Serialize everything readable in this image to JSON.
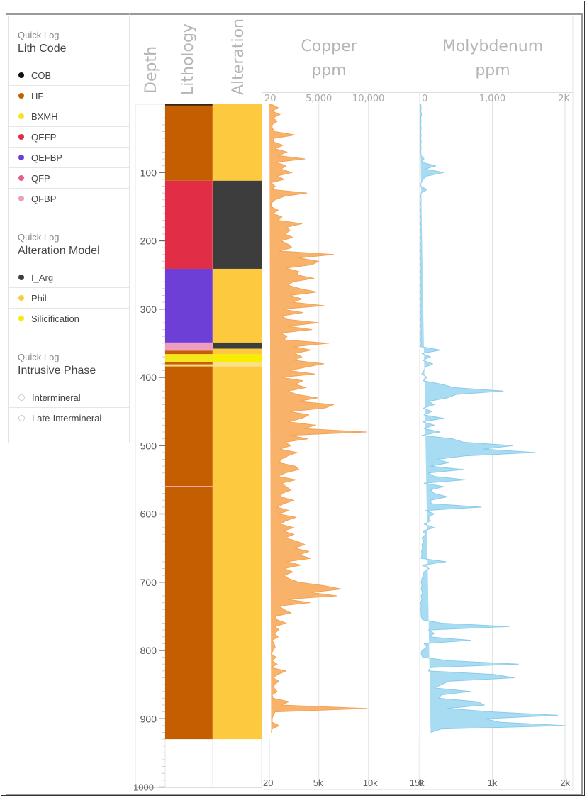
{
  "sidebar": {
    "sections": [
      {
        "kicker": "Quick Log",
        "title": "Lith Code",
        "items": [
          {
            "label": "COB",
            "color": "#111111"
          },
          {
            "label": "HF",
            "color": "#c45e00"
          },
          {
            "label": "BXMH",
            "color": "#f5e61c"
          },
          {
            "label": "QEFP",
            "color": "#e12d46"
          },
          {
            "label": "QEFBP",
            "color": "#6e3fd6"
          },
          {
            "label": "QFP",
            "color": "#e0608c"
          },
          {
            "label": "QFBP",
            "color": "#ee9cc0"
          }
        ]
      },
      {
        "kicker": "Quick Log",
        "title": "Alteration Model",
        "items": [
          {
            "label": "I_Arg",
            "color": "#3d3d3d"
          },
          {
            "label": "Phil",
            "color": "#fdc93e"
          },
          {
            "label": "Silicification",
            "color": "#f8ec00"
          }
        ]
      },
      {
        "kicker": "Quick Log",
        "title": "Intrusive Phase",
        "items": [
          {
            "label": "Intermineral",
            "color": "hollow"
          },
          {
            "label": "Late-Intermineral",
            "color": "hollow"
          }
        ]
      }
    ]
  },
  "headers": {
    "depth": "Depth",
    "lithology": "Lithology",
    "alteration": "Alteration",
    "copper_line1": "Copper",
    "copper_line2": "ppm",
    "moly_line1": "Molybdenum",
    "moly_line2": "ppm"
  },
  "chart_data": [
    {
      "type": "table",
      "title": "Lithology",
      "ylabel": "Depth",
      "ylim": [
        0,
        1000
      ],
      "intervals": [
        {
          "from": 0,
          "to": 2,
          "code": "COB",
          "color": "#3b2410"
        },
        {
          "from": 2,
          "to": 112,
          "code": "HF",
          "color": "#c45e00"
        },
        {
          "from": 112,
          "to": 241,
          "code": "QEFP",
          "color": "#e12d46"
        },
        {
          "from": 241,
          "to": 349,
          "code": "QEFBP",
          "color": "#6e3fd6"
        },
        {
          "from": 349,
          "to": 361,
          "code": "QFBP",
          "color": "#ee9cc0"
        },
        {
          "from": 361,
          "to": 366,
          "code": "HF",
          "color": "#c45e00"
        },
        {
          "from": 366,
          "to": 378,
          "code": "BXMH",
          "color": "#f5e61c"
        },
        {
          "from": 378,
          "to": 381,
          "code": "HF",
          "color": "#c45e00"
        },
        {
          "from": 381,
          "to": 384,
          "code": "BXMH",
          "color": "#f7d97a"
        },
        {
          "from": 384,
          "to": 559,
          "code": "HF",
          "color": "#c45e00"
        },
        {
          "from": 559,
          "to": 560,
          "code": "QFBP",
          "color": "#f2a6a0"
        },
        {
          "from": 560,
          "to": 930,
          "code": "HF",
          "color": "#c45e00"
        }
      ]
    },
    {
      "type": "table",
      "title": "Alteration",
      "ylabel": "Depth",
      "ylim": [
        0,
        1000
      ],
      "intervals": [
        {
          "from": 0,
          "to": 112,
          "code": "Phil",
          "color": "#fdc93e"
        },
        {
          "from": 112,
          "to": 241,
          "code": "I_Arg",
          "color": "#3d3d3d"
        },
        {
          "from": 241,
          "to": 349,
          "code": "Phil",
          "color": "#fdc93e"
        },
        {
          "from": 349,
          "to": 358,
          "code": "I_Arg",
          "color": "#3d3d3d"
        },
        {
          "from": 358,
          "to": 366,
          "code": "Phil",
          "color": "#fdc93e"
        },
        {
          "from": 366,
          "to": 378,
          "code": "Silicification",
          "color": "#f8ec00"
        },
        {
          "from": 378,
          "to": 384,
          "code": "Phil",
          "color": "#fde08a"
        },
        {
          "from": 384,
          "to": 930,
          "code": "Phil",
          "color": "#fdc93e"
        }
      ]
    },
    {
      "type": "area",
      "title": "Copper ppm",
      "ylabel": "Depth",
      "ylim": [
        0,
        1000
      ],
      "xlim": [
        20,
        15000
      ],
      "top_ticks": [
        "20",
        "5,000",
        "10,000"
      ],
      "top_tick_values": [
        20,
        5000,
        10000
      ],
      "bottom_ticks": [
        "20",
        "5k",
        "10k",
        "15k"
      ],
      "bottom_tick_values": [
        20,
        5000,
        10000,
        15000
      ],
      "color": "#f8b26a",
      "depth": [
        0,
        5,
        10,
        15,
        20,
        25,
        30,
        35,
        40,
        45,
        50,
        55,
        60,
        65,
        70,
        75,
        80,
        85,
        90,
        95,
        100,
        105,
        110,
        115,
        120,
        125,
        130,
        135,
        140,
        145,
        150,
        155,
        160,
        165,
        170,
        175,
        180,
        185,
        190,
        195,
        200,
        205,
        210,
        215,
        220,
        225,
        230,
        235,
        240,
        245,
        250,
        255,
        260,
        265,
        270,
        275,
        280,
        285,
        290,
        295,
        300,
        305,
        310,
        315,
        320,
        325,
        330,
        335,
        340,
        345,
        350,
        355,
        360,
        365,
        370,
        375,
        380,
        385,
        390,
        395,
        400,
        405,
        410,
        415,
        420,
        425,
        430,
        435,
        440,
        445,
        450,
        455,
        460,
        465,
        470,
        475,
        480,
        485,
        490,
        495,
        500,
        505,
        510,
        515,
        520,
        525,
        530,
        535,
        540,
        545,
        550,
        555,
        560,
        565,
        570,
        575,
        580,
        585,
        590,
        595,
        600,
        605,
        610,
        615,
        620,
        625,
        630,
        635,
        640,
        645,
        650,
        655,
        660,
        665,
        670,
        675,
        680,
        685,
        690,
        695,
        700,
        705,
        710,
        715,
        720,
        725,
        730,
        735,
        740,
        745,
        750,
        755,
        760,
        765,
        770,
        775,
        780,
        785,
        790,
        795,
        800,
        805,
        810,
        815,
        820,
        825,
        830,
        835,
        840,
        845,
        850,
        855,
        860,
        865,
        870,
        875,
        880,
        885,
        890,
        895,
        900,
        905,
        910,
        915,
        920,
        925,
        930
      ],
      "values": [
        200,
        900,
        300,
        1100,
        400,
        800,
        300,
        300,
        600,
        2600,
        500,
        400,
        1400,
        600,
        1800,
        900,
        3600,
        700,
        1700,
        1200,
        2300,
        800,
        1500,
        200,
        600,
        300,
        3800,
        1500,
        600,
        200,
        200,
        900,
        400,
        1300,
        900,
        3300,
        1800,
        2100,
        1600,
        2400,
        1200,
        1900,
        2300,
        1000,
        6500,
        3000,
        5000,
        4300,
        1700,
        3000,
        2800,
        4500,
        2400,
        1900,
        3100,
        4800,
        2100,
        3300,
        2400,
        5500,
        1300,
        3400,
        1300,
        1800,
        5000,
        1800,
        4300,
        1200,
        1800,
        1500,
        6000,
        2500,
        4200,
        2600,
        3300,
        2500,
        5500,
        3700,
        2000,
        4600,
        1200,
        3400,
        2600,
        3700,
        1900,
        2800,
        4900,
        2900,
        6500,
        5600,
        2100,
        4000,
        3300,
        1900,
        4700,
        3500,
        9800,
        2000,
        3900,
        1600,
        2200,
        1100,
        2800,
        1900,
        1200,
        1000,
        2600,
        3000,
        1600,
        900,
        2700,
        1300,
        1700,
        2200,
        1300,
        1100,
        2500,
        1500,
        800,
        2000,
        900,
        2700,
        1700,
        1100,
        2500,
        1400,
        2500,
        1600,
        2800,
        3600,
        2500,
        4000,
        3000,
        4200,
        1800,
        3200,
        1500,
        2400,
        1500,
        2000,
        3000,
        5500,
        7300,
        4200,
        6800,
        1800,
        4100,
        1000,
        1500,
        2200,
        600,
        800,
        1700,
        600,
        1000,
        500,
        900,
        300,
        500,
        600,
        400,
        200,
        700,
        300,
        800,
        200,
        1700,
        900,
        400,
        1000,
        500,
        500,
        800,
        300,
        400,
        2000,
        1200,
        9800,
        600,
        400,
        300,
        300,
        1000,
        300,
        200
      ]
    },
    {
      "type": "area",
      "title": "Molybdenum ppm",
      "ylabel": "Depth",
      "ylim": [
        0,
        1000
      ],
      "xlim": [
        0,
        2000
      ],
      "top_ticks": [
        "0",
        "1,000",
        "2K"
      ],
      "top_tick_values": [
        0,
        1000,
        2000
      ],
      "bottom_ticks": [
        "0",
        "1k",
        "2k"
      ],
      "bottom_tick_values": [
        0,
        1000,
        2000
      ],
      "color": "#a8dcf3",
      "depth": [
        0,
        5,
        10,
        15,
        20,
        25,
        30,
        35,
        40,
        45,
        50,
        55,
        60,
        65,
        70,
        75,
        80,
        85,
        90,
        95,
        100,
        105,
        110,
        115,
        120,
        125,
        130,
        135,
        140,
        145,
        150,
        155,
        160,
        165,
        170,
        175,
        180,
        185,
        190,
        195,
        200,
        205,
        210,
        215,
        220,
        225,
        230,
        235,
        240,
        245,
        250,
        255,
        260,
        265,
        270,
        275,
        280,
        285,
        290,
        295,
        300,
        305,
        310,
        315,
        320,
        325,
        330,
        335,
        340,
        345,
        350,
        355,
        360,
        365,
        370,
        375,
        380,
        385,
        390,
        395,
        400,
        405,
        410,
        415,
        420,
        425,
        430,
        435,
        440,
        445,
        450,
        455,
        460,
        465,
        470,
        475,
        480,
        485,
        490,
        495,
        500,
        505,
        510,
        515,
        520,
        525,
        530,
        535,
        540,
        545,
        550,
        555,
        560,
        565,
        570,
        575,
        580,
        585,
        590,
        595,
        600,
        605,
        610,
        615,
        620,
        625,
        630,
        635,
        640,
        645,
        650,
        655,
        660,
        665,
        670,
        675,
        680,
        685,
        690,
        695,
        700,
        705,
        710,
        715,
        720,
        725,
        730,
        735,
        740,
        745,
        750,
        755,
        760,
        765,
        770,
        775,
        780,
        785,
        790,
        795,
        800,
        805,
        810,
        815,
        820,
        825,
        830,
        835,
        840,
        845,
        850,
        855,
        860,
        865,
        870,
        875,
        880,
        885,
        890,
        895,
        900,
        905,
        910,
        915,
        920,
        925,
        930
      ],
      "values": [
        15,
        20,
        15,
        25,
        15,
        20,
        15,
        20,
        15,
        20,
        15,
        20,
        15,
        20,
        15,
        20,
        60,
        30,
        220,
        80,
        330,
        100,
        40,
        20,
        15,
        100,
        20,
        15,
        20,
        15,
        20,
        15,
        20,
        15,
        20,
        15,
        20,
        15,
        20,
        15,
        20,
        15,
        20,
        15,
        20,
        15,
        20,
        15,
        20,
        15,
        20,
        15,
        20,
        15,
        20,
        15,
        20,
        15,
        20,
        15,
        20,
        15,
        20,
        15,
        20,
        15,
        20,
        15,
        20,
        15,
        20,
        15,
        290,
        30,
        150,
        40,
        180,
        80,
        60,
        30,
        100,
        50,
        300,
        470,
        1150,
        500,
        380,
        120,
        200,
        50,
        170,
        60,
        330,
        40,
        200,
        60,
        280,
        30,
        450,
        600,
        1280,
        880,
        1580,
        620,
        240,
        400,
        150,
        600,
        120,
        200,
        630,
        60,
        330,
        150,
        200,
        380,
        150,
        160,
        850,
        80,
        200,
        120,
        150,
        60,
        200,
        40,
        80,
        30,
        60,
        30,
        40,
        25,
        30,
        20,
        360,
        30,
        130,
        60,
        50,
        30,
        20,
        30,
        20,
        40,
        20,
        30,
        15,
        20,
        15,
        20,
        20,
        40,
        300,
        1230,
        120,
        200,
        130,
        700,
        60,
        100,
        30,
        20,
        40,
        400,
        1360,
        150,
        120,
        1020,
        1300,
        400,
        300,
        200,
        700,
        300,
        260,
        800,
        890,
        380,
        1000,
        1900,
        900,
        1100,
        2000,
        300,
        150
      ]
    }
  ],
  "depth_axis": {
    "ticks": [
      "100",
      "200",
      "300",
      "400",
      "500",
      "600",
      "700",
      "800",
      "900",
      "1000"
    ],
    "tick_values": [
      100,
      200,
      300,
      400,
      500,
      600,
      700,
      800,
      900,
      1000
    ]
  }
}
